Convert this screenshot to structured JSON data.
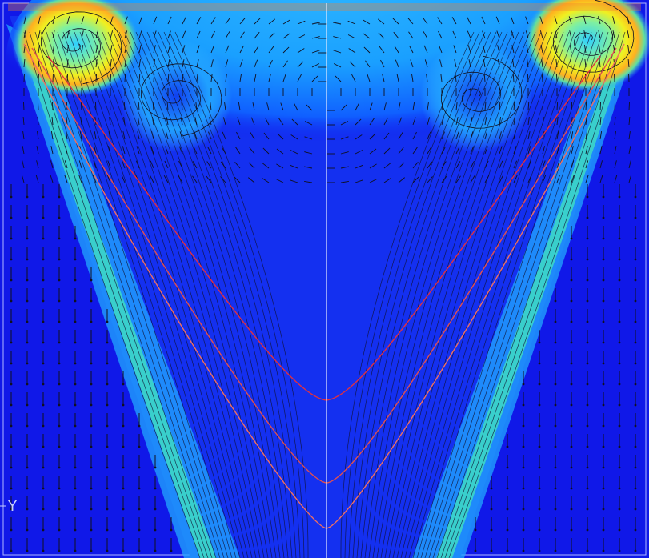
{
  "axis_label": "Y"
}
